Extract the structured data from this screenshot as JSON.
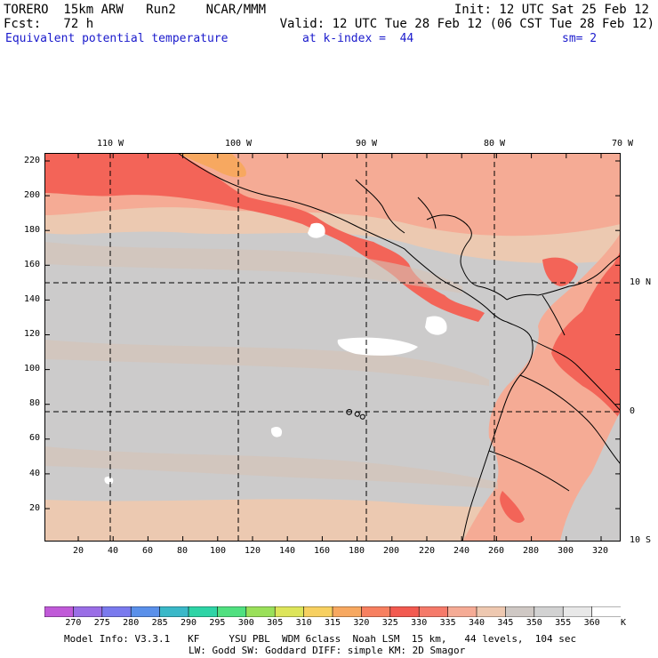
{
  "header": {
    "left_line1": "TORERO  15km ARW   Run2    NCAR/MMM",
    "left_line2": "Fcst:   72 h",
    "right_line1": "Init: 12 UTC Sat 25 Feb 12",
    "right_line2": "Valid: 12 UTC Tue 28 Feb 12 (06 CST Tue 28 Feb 12)",
    "field_name": "Equivalent potential temperature",
    "level": "at k-index =  44",
    "smoothing": "sm= 2"
  },
  "map": {
    "longitude_labels": [
      "110 W",
      "100 W",
      "90 W",
      "80 W",
      "70 W"
    ],
    "latitude_labels": [
      "10 N",
      "0",
      "10 S"
    ],
    "x_ticks": [
      "20",
      "40",
      "60",
      "80",
      "100",
      "120",
      "140",
      "160",
      "180",
      "200",
      "220",
      "240",
      "260",
      "280",
      "300",
      "320"
    ],
    "y_ticks": [
      "20",
      "40",
      "60",
      "80",
      "100",
      "120",
      "140",
      "160",
      "180",
      "200",
      "220"
    ]
  },
  "colorbar": {
    "unit": "K",
    "levels": [
      "270",
      "275",
      "280",
      "285",
      "290",
      "295",
      "300",
      "305",
      "310",
      "315",
      "320",
      "325",
      "330",
      "335",
      "340",
      "345",
      "350",
      "355",
      "360"
    ],
    "colors": [
      "#c05ad8",
      "#9a6ee6",
      "#7a7aee",
      "#5a90ea",
      "#3ab8c8",
      "#2ed4a6",
      "#50e080",
      "#9ae05a",
      "#dde55a",
      "#f7d060",
      "#f7a860",
      "#f78060",
      "#f25a50",
      "#f57a6a",
      "#f5ab95",
      "#eec8b0",
      "#cfc8c4",
      "#d2d2d2",
      "#e8e8e8",
      "#ffffff"
    ]
  },
  "footer": {
    "line1": "Model Info: V3.3.1   KF     YSU PBL  WDM 6class  Noah LSM  15 km,   44 levels,  104 sec",
    "line2": "LW: Godd SW: Goddard DIFF: simple KM: 2D Smagor"
  },
  "field_colors": {
    "ocean_base": "#cccbcb",
    "warm_band": "#ecc9b1",
    "moist": "#f5ab95",
    "very_moist": "#f36458",
    "peak": "#f7a860",
    "dry_patch": "#ffffff",
    "coast": "#000000"
  }
}
